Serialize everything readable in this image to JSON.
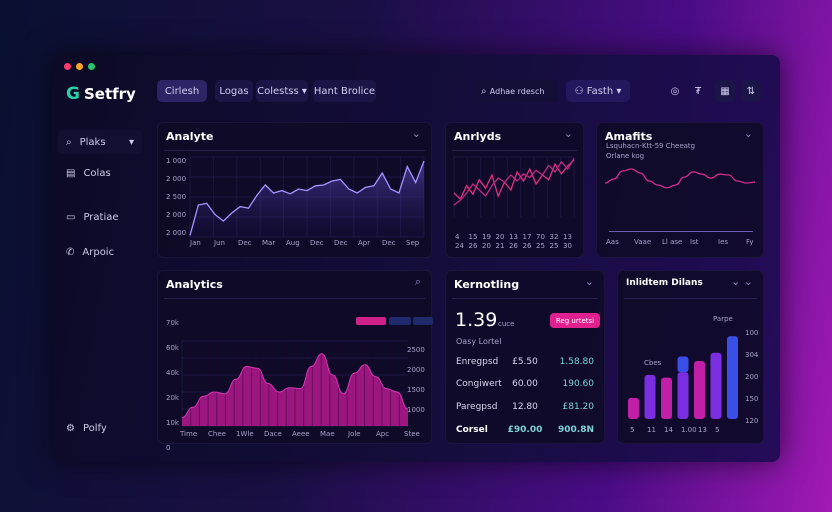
{
  "app": {
    "name": "Setfry",
    "window_controls": [
      "close",
      "minimize",
      "maximize"
    ]
  },
  "colors": {
    "accent_pink": "#e0208f",
    "accent_violet": "#7c2ee0",
    "accent_blue": "#3a4ee8",
    "line": "#a893ff",
    "teal": "#2ad1a8"
  },
  "nav": {
    "tabs": [
      {
        "label": "Cirlesh",
        "active": true
      },
      {
        "label": "Logas"
      },
      {
        "label": "Colestss",
        "has_dropdown": true
      },
      {
        "label": "Hant Brolice"
      }
    ]
  },
  "header": {
    "search_placeholder": "Adhae rdesch",
    "user_label": "Fasth",
    "icons": [
      "settings-circle-icon",
      "filter-icon",
      "calendar-icon",
      "sliders-icon"
    ]
  },
  "sidebar": {
    "items": [
      {
        "label": "Plaks",
        "icon": "search-icon",
        "active": true
      },
      {
        "label": "Colas",
        "icon": "document-icon"
      },
      {
        "label": "Pratiae",
        "icon": "inbox-icon"
      },
      {
        "label": "Arpoic",
        "icon": "phone-icon"
      }
    ],
    "footer": {
      "label": "Polfy",
      "icon": "gear-icon"
    }
  },
  "cards": {
    "c1": {
      "title": "Analyte"
    },
    "c2": {
      "title": "Anrlyds"
    },
    "c3": {
      "title": "Amafits",
      "subtitle": "Lsquhacn-Ktt-59 Cheeatg",
      "subtitle2": "Orlane kog"
    },
    "c4": {
      "title": "Analytics",
      "legend": [
        "",
        "",
        ""
      ]
    },
    "c5": {
      "title": "Kernotling",
      "big_value": "1.39",
      "big_unit": "cuce",
      "button": "Reg urtetsi",
      "sub": "Oasy Lortel",
      "rows": [
        {
          "label": "Enregpsd",
          "v1": "£5.50",
          "v2": "1.58.80"
        },
        {
          "label": "Congiwert",
          "v1": "60.00",
          "v2": "190.60"
        },
        {
          "label": "Paregpsd",
          "v1": "12.80",
          "v2": "£81.20"
        },
        {
          "label": "Corsel",
          "v1": "£90.00",
          "v2": "900.8N"
        }
      ]
    },
    "c6": {
      "title": "Inlidtem Dilans",
      "label_a": "Parpe",
      "label_b": "Cbes"
    }
  },
  "chart_data": [
    {
      "id": "c1",
      "type": "area",
      "ylabels": [
        "1 000",
        "2 000",
        "2 500",
        "2 000",
        "2 000"
      ],
      "xlabels": [
        "Jan",
        "Jun",
        "Dec",
        "Mar",
        "Aug",
        "Dec",
        "Dec",
        "Apr",
        "Dec",
        "Sep"
      ],
      "ylim": [
        0,
        100
      ],
      "values": [
        2,
        40,
        42,
        28,
        20,
        30,
        38,
        36,
        52,
        65,
        55,
        58,
        54,
        60,
        58,
        64,
        65,
        70,
        72,
        60,
        55,
        62,
        64,
        80,
        60,
        55,
        88,
        68,
        95
      ]
    },
    {
      "id": "c2",
      "type": "line",
      "xlabels": [
        "4",
        "15",
        "19",
        "20",
        "13",
        "17",
        "70",
        "32",
        "13"
      ],
      "xlabels2": [
        "24",
        "26",
        "20",
        "21",
        "26",
        "26",
        "25",
        "25",
        "30"
      ],
      "ylim": [
        0,
        100
      ],
      "series": [
        {
          "values": [
            40,
            30,
            52,
            38,
            62,
            48,
            70,
            35,
            58,
            45,
            75,
            60,
            80,
            55,
            70,
            62,
            88,
            72,
            85,
            95
          ]
        },
        {
          "values": [
            20,
            28,
            40,
            55,
            45,
            35,
            52,
            65,
            58,
            70,
            60,
            72,
            66,
            78,
            70,
            86,
            75,
            92,
            80,
            98
          ]
        }
      ]
    },
    {
      "id": "c3",
      "type": "line",
      "xlabels": [
        "Aas",
        "Vaae",
        "Ll ase",
        "Ist",
        "Ies",
        "Fy"
      ],
      "ylim": [
        0,
        100
      ],
      "values": [
        50,
        60,
        80,
        85,
        75,
        55,
        45,
        38,
        45,
        65,
        78,
        72,
        62,
        72,
        70,
        55,
        50,
        52
      ]
    },
    {
      "id": "c4",
      "type": "area",
      "ylabels": [
        "70k",
        "60k",
        "40k",
        "20k",
        "10k",
        "0"
      ],
      "y2labels": [
        "2500",
        "2000",
        "1500",
        "1000"
      ],
      "xlabels": [
        "Time",
        "Chee",
        "1Wle",
        "Dace",
        "Aeee",
        "Mae",
        "Jole",
        "Apc",
        "Stee"
      ],
      "ylim": [
        0,
        100
      ],
      "values": [
        10,
        22,
        35,
        40,
        38,
        55,
        70,
        68,
        50,
        40,
        45,
        44,
        70,
        85,
        60,
        38,
        62,
        72,
        58,
        44,
        40,
        20
      ]
    },
    {
      "id": "c6",
      "type": "bar",
      "ylabels": [
        "100",
        "304",
        "200",
        "150",
        "120"
      ],
      "xlabels": [
        "5",
        "11",
        "14",
        "1.00",
        "13",
        "5"
      ],
      "ylim": [
        0,
        100
      ],
      "series": [
        {
          "name": "",
          "values": [
            23,
            48,
            45,
            51,
            63,
            72,
            0
          ]
        },
        {
          "name": "",
          "values": [
            0,
            0,
            0,
            17,
            0,
            0,
            90
          ]
        }
      ]
    }
  ]
}
